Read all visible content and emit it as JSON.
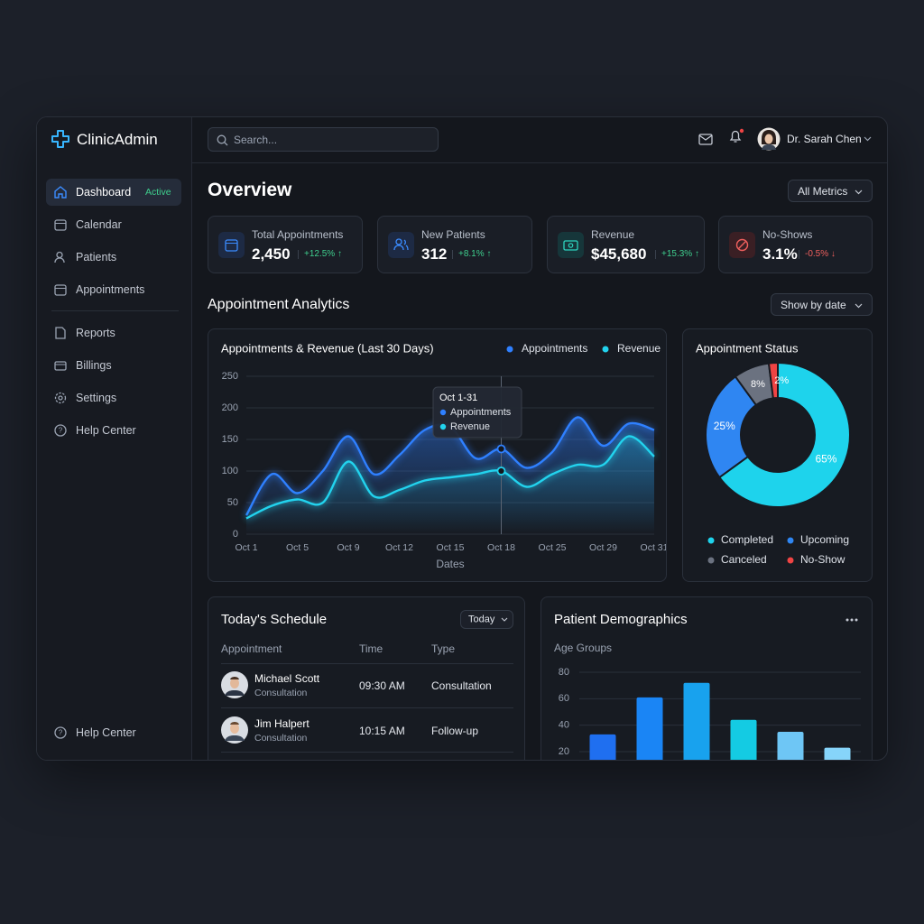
{
  "app": {
    "name": "ClinicAdmin"
  },
  "sidebar": {
    "nav": [
      {
        "label": "Dashboard",
        "badge": "Active"
      },
      {
        "label": "Calendar"
      },
      {
        "label": "Patients"
      },
      {
        "label": "Appointments"
      },
      {
        "label": "Reports"
      },
      {
        "label": "Billings"
      },
      {
        "label": "Settings"
      },
      {
        "label": "Help Center"
      }
    ],
    "footer": "Help Center"
  },
  "header": {
    "search_placeholder": "Search...",
    "user": "Dr. Sarah Chen"
  },
  "page": {
    "title": "Overview",
    "filter": "All Metrics"
  },
  "kpis": [
    {
      "label": "Total Appointments",
      "value": "2,450",
      "change": "+12.5% ↑"
    },
    {
      "label": "New Patients",
      "value": "312",
      "change": "+8.1% ↑"
    },
    {
      "label": "Revenue",
      "value": "$45,680",
      "change": "+15.3% ↑"
    },
    {
      "label": "No-Shows",
      "value": "3.1%",
      "change": "-0.5% ↓"
    }
  ],
  "analytics": {
    "title": "Appointment Analytics",
    "filter": "Show by date"
  },
  "schedule": {
    "title": "Today's Schedule",
    "filter": "Today",
    "columns": [
      "Appointment",
      "Time",
      "Type"
    ],
    "rows": [
      {
        "name": "Michael Scott",
        "subtitle": "Consultation",
        "time": "09:30 AM",
        "type": "Consultation"
      },
      {
        "name": "Jim Halpert",
        "subtitle": "Consultation",
        "time": "10:15 AM",
        "type": "Follow-up"
      }
    ]
  },
  "chart_data": [
    {
      "type": "line",
      "title": "Appointments & Revenue (Last 30 Days)",
      "categories": [
        "Oct 1",
        null,
        "Oct 5",
        null,
        "Oct 9",
        null,
        "Oct 12",
        null,
        "Oct 15",
        null,
        "Oct 18",
        null,
        "Oct 25",
        null,
        "Oct 29",
        null,
        "Oct 31"
      ],
      "series": [
        {
          "name": "Appointments",
          "color": "#2f80ff",
          "values": [
            30,
            95,
            65,
            100,
            155,
            95,
            125,
            165,
            170,
            120,
            135,
            105,
            130,
            185,
            140,
            175,
            165
          ]
        },
        {
          "name": "Revenue",
          "color": "#22d3ee",
          "values": [
            25,
            45,
            55,
            50,
            115,
            60,
            70,
            85,
            90,
            95,
            100,
            75,
            95,
            110,
            110,
            155,
            123
          ]
        }
      ],
      "ylim": [
        0,
        250
      ],
      "yticks": [
        0,
        50,
        100,
        150,
        200,
        250
      ],
      "xlabel": "Dates",
      "grid": true,
      "tooltip_title": "Oct 1-31"
    },
    {
      "type": "donut",
      "title": "Appointment Status",
      "categories": [
        "Completed",
        "Upcoming",
        "Canceled",
        "No-Show"
      ],
      "values": [
        65,
        25,
        8,
        2
      ],
      "value_labels": [
        "65%",
        "25%",
        "8%",
        "2%"
      ],
      "colors": [
        "#1ed3ec",
        "#2f86f2",
        "#6b7280",
        "#ef4444"
      ]
    },
    {
      "type": "bar",
      "title": "Patient Demographics",
      "subtitle": "Age Groups",
      "values": [
        33,
        61,
        72,
        44,
        35,
        23
      ],
      "colors": [
        "#1f6ff0",
        "#1a85f5",
        "#18a2ee",
        "#14cbe3",
        "#6ec6f5",
        "#86d4fa"
      ],
      "ylim": [
        0,
        80
      ],
      "yticks": [
        20,
        40,
        60,
        80
      ],
      "grid": true
    }
  ]
}
